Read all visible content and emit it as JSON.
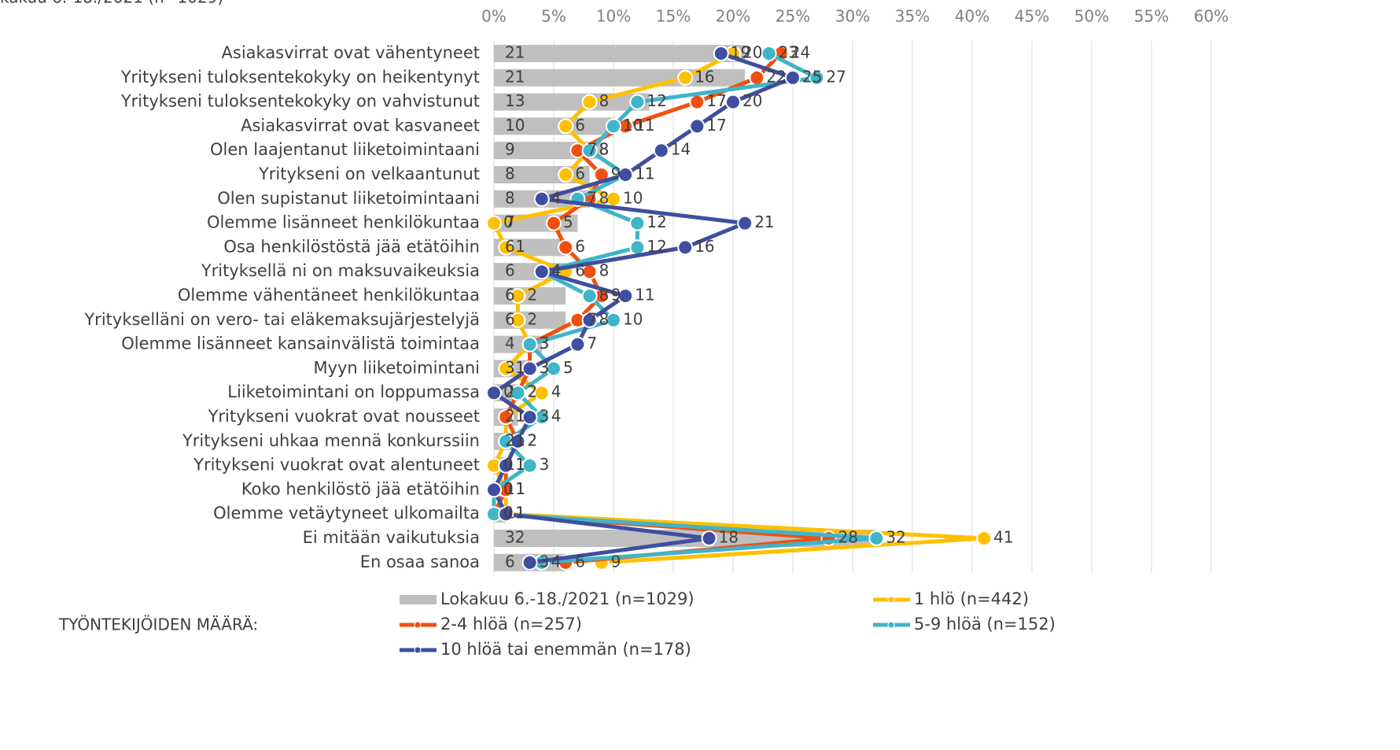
{
  "chart_data": {
    "type": "combo",
    "title": "kakuu 6.-18./2021 (n=1029)",
    "legend_title": "TYÖNTEKIJÖIDEN MÄÄRÄ:",
    "categories": [
      "Asiakasvirrat ovat vähentyneet",
      "Yritykseni tuloksentekokyky on heikentynyt",
      "Yritykseni tuloksentekokyky on vahvistunut",
      "Asiakasvirrat ovat kasvaneet",
      "Olen laajentanut liiketoimintaani",
      "Yritykseni on velkaantunut",
      "Olen supistanut liiketoimintaani",
      "Olemme lisänneet henkilökuntaa",
      "Osa henkilöstöstä jää etätöihin",
      "Yrityksellä ni on maksuvaikeuksia",
      "Olemme vähentäneet henkilökuntaa",
      "Yritykselläni on vero- tai eläkemaksujärjestelyjä",
      "Olemme lisänneet kansainvälistä toimintaa",
      "Myyn liiketoimintani",
      "Liiketoimintani on loppumassa",
      "Yritykseni vuokrat ovat nousseet",
      "Yritykseni uhkaa mennä konkurssiin",
      "Yritykseni vuokrat ovat alentuneet",
      "Koko henkilöstö jää etätöihin",
      "Olemme vetäytyneet ulkomailta",
      "Ei mitään vaikutuksia",
      "En osaa sanoa"
    ],
    "xlim": [
      0,
      60
    ],
    "xticks": [
      {
        "value": 0,
        "label": "0%"
      },
      {
        "value": 5,
        "label": "5%"
      },
      {
        "value": 10,
        "label": "10%"
      },
      {
        "value": 15,
        "label": "15%"
      },
      {
        "value": 20,
        "label": "20%"
      },
      {
        "value": 25,
        "label": "25%"
      },
      {
        "value": 30,
        "label": "30%"
      },
      {
        "value": 35,
        "label": "35%"
      },
      {
        "value": 40,
        "label": "40%"
      },
      {
        "value": 45,
        "label": "45%"
      },
      {
        "value": 50,
        "label": "50%"
      },
      {
        "value": 55,
        "label": "55%"
      },
      {
        "value": 60,
        "label": "60%"
      }
    ],
    "grid": true,
    "series": [
      {
        "name": "Lokakuu 6.-18./2021 (n=1029)",
        "type": "bar",
        "color": "#bfbfbf",
        "label_color": "#262626",
        "values": [
          21,
          21,
          13,
          10,
          9,
          8,
          8,
          7,
          6,
          6,
          6,
          6,
          4,
          3,
          2,
          2,
          2,
          1,
          1,
          1,
          32,
          6
        ]
      },
      {
        "name": "1 hlö (n=442)",
        "type": "line",
        "color": "#ffc000",
        "label_color": "#c8960a",
        "values": [
          20,
          16,
          8,
          6,
          8,
          6,
          10,
          0,
          1,
          6,
          2,
          2,
          3,
          1,
          4,
          1,
          1,
          0,
          1,
          1,
          41,
          9
        ]
      },
      {
        "name": "2-4 hlöä (n=257)",
        "type": "line",
        "color": "#f0500f",
        "label_color": "#f0500f",
        "values": [
          24,
          22,
          17,
          11,
          7,
          9,
          8,
          5,
          6,
          8,
          9,
          7,
          3,
          3,
          2,
          1,
          2,
          1,
          1,
          0,
          28,
          6
        ]
      },
      {
        "name": "5-9 hlöä (n=152)",
        "type": "line",
        "color": "#40b4c8",
        "label_color": "#40b4c8",
        "values": [
          23,
          27,
          12,
          10,
          8,
          11,
          7,
          12,
          12,
          4,
          8,
          10,
          3,
          5,
          2,
          4,
          1,
          3,
          0,
          0,
          32,
          4
        ]
      },
      {
        "name": "10 hlöä tai enemmän (n=178)",
        "type": "line",
        "color": "#3f4ea0",
        "label_color": "#3f4ea0",
        "values": [
          19,
          25,
          20,
          17,
          14,
          11,
          4,
          21,
          16,
          4,
          11,
          8,
          7,
          3,
          0,
          3,
          2,
          1,
          0,
          1,
          18,
          3
        ]
      }
    ]
  }
}
